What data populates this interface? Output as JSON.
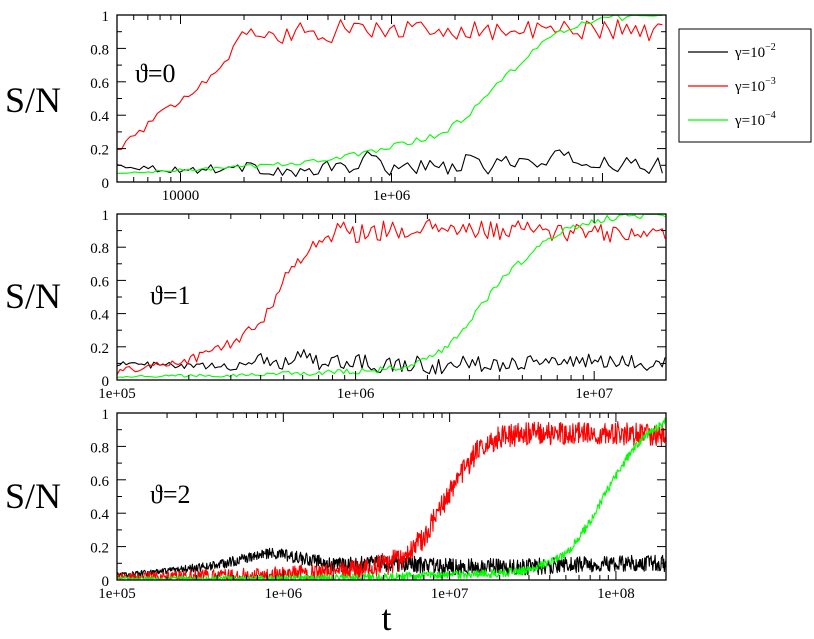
{
  "chart_data": [
    {
      "type": "line",
      "annotation": "ϑ=0",
      "ylabel": "S/N",
      "xscale": "log",
      "xlim": [
        5000,
        2000000
      ],
      "ylim": [
        0,
        1
      ],
      "x_ticklabels": [
        "10000",
        "1e+06"
      ],
      "y_ticklabels": [
        "0",
        "0.2",
        "0.4",
        "0.6",
        "0.8",
        "1"
      ],
      "series": [
        {
          "name": "γ=10⁻²",
          "color": "#000000",
          "points": [
            [
              5000,
              0.1
            ],
            [
              10000,
              0.07
            ],
            [
              20000,
              0.09
            ],
            [
              40000,
              0.05
            ],
            [
              55000,
              0.1
            ],
            [
              65000,
              0.08
            ],
            [
              80000,
              0.15
            ],
            [
              100000,
              0.08
            ],
            [
              130000,
              0.1
            ],
            [
              170000,
              0.07
            ],
            [
              220000,
              0.12
            ],
            [
              290000,
              0.09
            ],
            [
              380000,
              0.14
            ],
            [
              500000,
              0.09
            ],
            [
              650000,
              0.16
            ],
            [
              850000,
              0.11
            ],
            [
              1100000,
              0.12
            ],
            [
              1400000,
              0.09
            ],
            [
              2000000,
              0.1
            ]
          ],
          "noise": 0.05,
          "step_factor": 1.05
        },
        {
          "name": "γ=10⁻³",
          "color": "#ff0000",
          "points": [
            [
              5000,
              0.19
            ],
            [
              10000,
              0.5
            ],
            [
              15000,
              0.67
            ],
            [
              20000,
              0.89
            ],
            [
              30000,
              0.86
            ],
            [
              40000,
              0.93
            ],
            [
              50000,
              0.83
            ],
            [
              60000,
              0.95
            ],
            [
              80000,
              0.9
            ],
            [
              110000,
              0.92
            ],
            [
              150000,
              0.89
            ],
            [
              220000,
              0.92
            ],
            [
              350000,
              0.9
            ],
            [
              600000,
              0.91
            ],
            [
              1000000,
              0.92
            ],
            [
              2000000,
              0.9
            ]
          ],
          "noise": 0.06,
          "step_factor": 1.05
        },
        {
          "name": "γ=10⁻⁴",
          "color": "#00ff00",
          "points": [
            [
              5000,
              0.05
            ],
            [
              10000,
              0.07
            ],
            [
              20000,
              0.09
            ],
            [
              40000,
              0.12
            ],
            [
              60000,
              0.15
            ],
            [
              80000,
              0.18
            ],
            [
              100000,
              0.22
            ],
            [
              130000,
              0.25
            ],
            [
              170000,
              0.28
            ],
            [
              230000,
              0.4
            ],
            [
              300000,
              0.55
            ],
            [
              380000,
              0.68
            ],
            [
              480000,
              0.8
            ],
            [
              600000,
              0.88
            ],
            [
              800000,
              0.95
            ],
            [
              1100000,
              0.98
            ],
            [
              1500000,
              0.99
            ],
            [
              2000000,
              1.0
            ]
          ],
          "noise": 0.02,
          "step_factor": 1.05
        }
      ]
    },
    {
      "type": "line",
      "annotation": "ϑ=1",
      "ylabel": "S/N",
      "xscale": "log",
      "xlim": [
        100000,
        20000000
      ],
      "ylim": [
        0,
        1
      ],
      "x_ticklabels": [
        "1e+05",
        "1e+06",
        "1e+07"
      ],
      "y_ticklabels": [
        "0",
        "0.2",
        "0.4",
        "0.6",
        "0.8",
        "1"
      ],
      "series": [
        {
          "name": "γ=10⁻²",
          "color": "#000000",
          "points": [
            [
              100000,
              0.1
            ],
            [
              200000,
              0.08
            ],
            [
              300000,
              0.08
            ],
            [
              400000,
              0.13
            ],
            [
              500000,
              0.1
            ],
            [
              600000,
              0.17
            ],
            [
              700000,
              0.1
            ],
            [
              800000,
              0.12
            ],
            [
              900000,
              0.09
            ],
            [
              1100000,
              0.12
            ],
            [
              1300000,
              0.08
            ],
            [
              1700000,
              0.1
            ],
            [
              2300000,
              0.08
            ],
            [
              3000000,
              0.1
            ],
            [
              4000000,
              0.1
            ],
            [
              6000000,
              0.12
            ],
            [
              9000000,
              0.11
            ],
            [
              13000000,
              0.1
            ],
            [
              20000000,
              0.11
            ]
          ],
          "noise": 0.05,
          "step_factor": 1.03
        },
        {
          "name": "γ=10⁻³",
          "color": "#ff0000",
          "points": [
            [
              100000,
              0.05
            ],
            [
              200000,
              0.12
            ],
            [
              300000,
              0.22
            ],
            [
              400000,
              0.34
            ],
            [
              500000,
              0.6
            ],
            [
              600000,
              0.75
            ],
            [
              700000,
              0.85
            ],
            [
              800000,
              0.87
            ],
            [
              900000,
              0.93
            ],
            [
              1000000,
              0.88
            ],
            [
              1300000,
              0.9
            ],
            [
              2000000,
              0.91
            ],
            [
              3500000,
              0.9
            ],
            [
              6000000,
              0.9
            ],
            [
              10000000,
              0.88
            ],
            [
              20000000,
              0.88
            ]
          ],
          "noise": 0.06,
          "step_factor": 1.03
        },
        {
          "name": "γ=10⁻⁴",
          "color": "#00ff00",
          "points": [
            [
              100000,
              0.02
            ],
            [
              300000,
              0.03
            ],
            [
              600000,
              0.04
            ],
            [
              1000000,
              0.05
            ],
            [
              1500000,
              0.07
            ],
            [
              2000000,
              0.12
            ],
            [
              2500000,
              0.22
            ],
            [
              3000000,
              0.35
            ],
            [
              3500000,
              0.48
            ],
            [
              4000000,
              0.6
            ],
            [
              5000000,
              0.72
            ],
            [
              6000000,
              0.82
            ],
            [
              8000000,
              0.92
            ],
            [
              11000000,
              0.97
            ],
            [
              15000000,
              0.99
            ],
            [
              20000000,
              0.99
            ]
          ],
          "noise": 0.02,
          "step_factor": 1.03
        }
      ]
    },
    {
      "type": "line",
      "annotation": "ϑ=2",
      "ylabel": "S/N",
      "xlabel": "t",
      "xscale": "log",
      "xlim": [
        100000,
        200000000
      ],
      "ylim": [
        0,
        1
      ],
      "x_ticklabels": [
        "1e+05",
        "1e+06",
        "1e+07",
        "1e+08"
      ],
      "y_ticklabels": [
        "0",
        "0.2",
        "0.4",
        "0.6",
        "0.8",
        "1"
      ],
      "series": [
        {
          "name": "γ=10⁻²",
          "color": "#000000",
          "points": [
            [
              100000,
              0.03
            ],
            [
              200000,
              0.05
            ],
            [
              400000,
              0.09
            ],
            [
              600000,
              0.13
            ],
            [
              800000,
              0.16
            ],
            [
              1000000,
              0.15
            ],
            [
              1300000,
              0.13
            ],
            [
              2000000,
              0.09
            ],
            [
              3000000,
              0.1
            ],
            [
              5000000,
              0.1
            ],
            [
              10000000,
              0.08
            ],
            [
              30000000,
              0.08
            ],
            [
              60000000,
              0.09
            ],
            [
              100000000,
              0.1
            ],
            [
              200000000,
              0.1
            ]
          ],
          "noise": 0.05,
          "step_factor": 1.008
        },
        {
          "name": "γ=10⁻³",
          "color": "#ff0000",
          "points": [
            [
              100000,
              0.02
            ],
            [
              1000000,
              0.03
            ],
            [
              3000000,
              0.06
            ],
            [
              5000000,
              0.12
            ],
            [
              7000000,
              0.25
            ],
            [
              9000000,
              0.45
            ],
            [
              12000000,
              0.65
            ],
            [
              15000000,
              0.78
            ],
            [
              20000000,
              0.86
            ],
            [
              30000000,
              0.88
            ],
            [
              60000000,
              0.88
            ],
            [
              100000000,
              0.88
            ],
            [
              200000000,
              0.86
            ]
          ],
          "noise": 0.07,
          "step_factor": 1.008
        },
        {
          "name": "γ=10⁻⁴",
          "color": "#00ff00",
          "points": [
            [
              100000,
              0.01
            ],
            [
              1000000,
              0.01
            ],
            [
              5000000,
              0.02
            ],
            [
              10000000,
              0.03
            ],
            [
              20000000,
              0.04
            ],
            [
              30000000,
              0.06
            ],
            [
              50000000,
              0.15
            ],
            [
              70000000,
              0.35
            ],
            [
              90000000,
              0.55
            ],
            [
              120000000,
              0.75
            ],
            [
              150000000,
              0.86
            ],
            [
              200000000,
              0.95
            ]
          ],
          "noise": 0.025,
          "step_factor": 1.008
        }
      ]
    }
  ],
  "legend": {
    "items": [
      {
        "prefix": "γ=10",
        "exp": "−2",
        "color": "#000000"
      },
      {
        "prefix": "γ=10",
        "exp": "−3",
        "color": "#ff0000"
      },
      {
        "prefix": "γ=10",
        "exp": "−4",
        "color": "#00ff00"
      }
    ]
  }
}
